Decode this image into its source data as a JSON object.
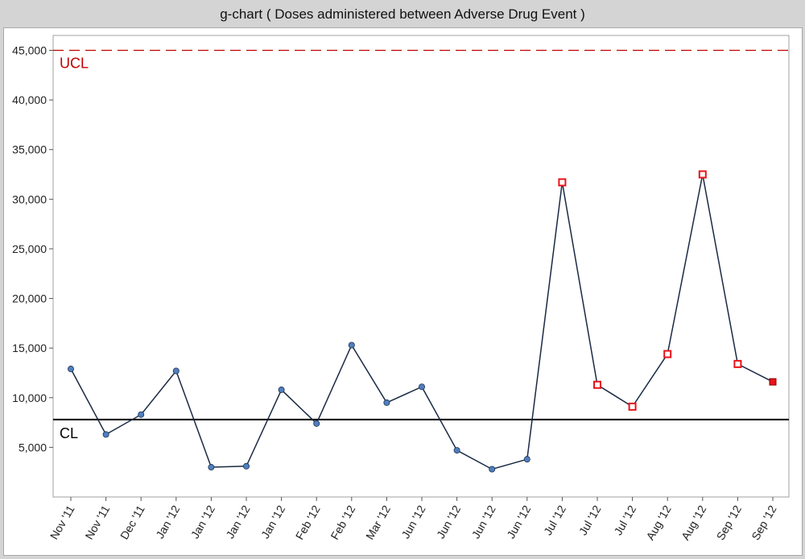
{
  "window": {
    "title": "g-chart  ( Doses administered between Adverse Drug Event )"
  },
  "colors": {
    "line": "#1a2a44",
    "in_control_marker": "#4f7fbf",
    "out_of_control_marker": "#e8141a",
    "ucl": "#c00000",
    "cl": "#000000"
  },
  "chart_data": {
    "type": "line",
    "title": "g-chart  ( Doses administered between Adverse Drug Event )",
    "xlabel": "",
    "ylabel": "",
    "categories": [
      "Nov '11",
      "Nov '11",
      "Dec '11",
      "Jan '12",
      "Jan '12",
      "Jan '12",
      "Jan '12",
      "Feb '12",
      "Feb '12",
      "Mar '12",
      "Jun '12",
      "Jun '12",
      "Jun '12",
      "Jun '12",
      "Jul '12",
      "Jul '12",
      "Jul '12",
      "Aug '12",
      "Aug '12",
      "Sep '12",
      "Sep '12"
    ],
    "series": [
      {
        "values": [
          12900,
          6300,
          8300,
          12700,
          3000,
          3100,
          10800,
          7400,
          15300,
          9500,
          11100,
          4700,
          2800,
          3800,
          31700,
          11300,
          9100,
          14400,
          32500,
          13400,
          11600
        ],
        "markers": [
          "circle",
          "circle",
          "circle",
          "circle",
          "circle",
          "circle",
          "circle",
          "circle",
          "circle",
          "circle",
          "circle",
          "circle",
          "circle",
          "circle",
          "open-square",
          "open-square",
          "open-square",
          "open-square",
          "open-square",
          "open-square",
          "filled-square"
        ]
      }
    ],
    "reference_lines": [
      {
        "label": "UCL",
        "value": 45000,
        "style": "dashed"
      },
      {
        "label": "CL",
        "value": 7800,
        "style": "solid"
      }
    ],
    "ylim": [
      0,
      46500
    ],
    "yticks": [
      5000,
      10000,
      15000,
      20000,
      25000,
      30000,
      35000,
      40000,
      45000
    ],
    "ytick_labels": [
      "5,000",
      "10,000",
      "15,000",
      "20,000",
      "25,000",
      "30,000",
      "35,000",
      "40,000",
      "45,000"
    ],
    "grid": false
  }
}
